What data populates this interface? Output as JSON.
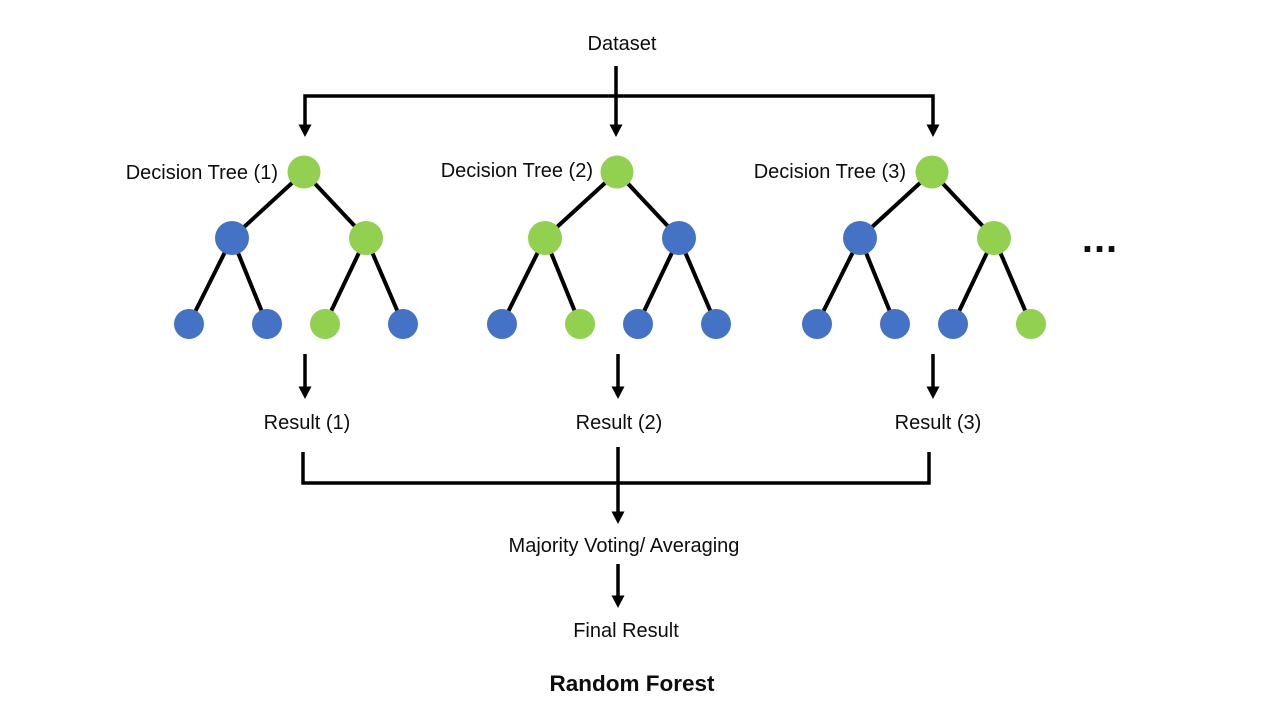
{
  "title": "Random Forest",
  "labels": {
    "dataset": "Dataset",
    "majority_voting": "Majority Voting/ Averaging",
    "final_result": "Final Result",
    "ellipsis": "..."
  },
  "palette": {
    "green": "#92D050",
    "blue": "#4472C4",
    "line": "#000000"
  },
  "trees": [
    {
      "label": "Decision Tree (1)",
      "result": "Result (1)",
      "node_colors": {
        "root": "green",
        "level2": [
          "blue",
          "green"
        ],
        "level3": [
          "blue",
          "blue",
          "green",
          "blue"
        ]
      }
    },
    {
      "label": "Decision Tree (2)",
      "result": "Result (2)",
      "node_colors": {
        "root": "green",
        "level2": [
          "green",
          "blue"
        ],
        "level3": [
          "blue",
          "green",
          "blue",
          "blue"
        ]
      }
    },
    {
      "label": "Decision Tree (3)",
      "result": "Result (3)",
      "node_colors": {
        "root": "green",
        "level2": [
          "blue",
          "green"
        ],
        "level3": [
          "blue",
          "blue",
          "blue",
          "green"
        ]
      }
    }
  ]
}
